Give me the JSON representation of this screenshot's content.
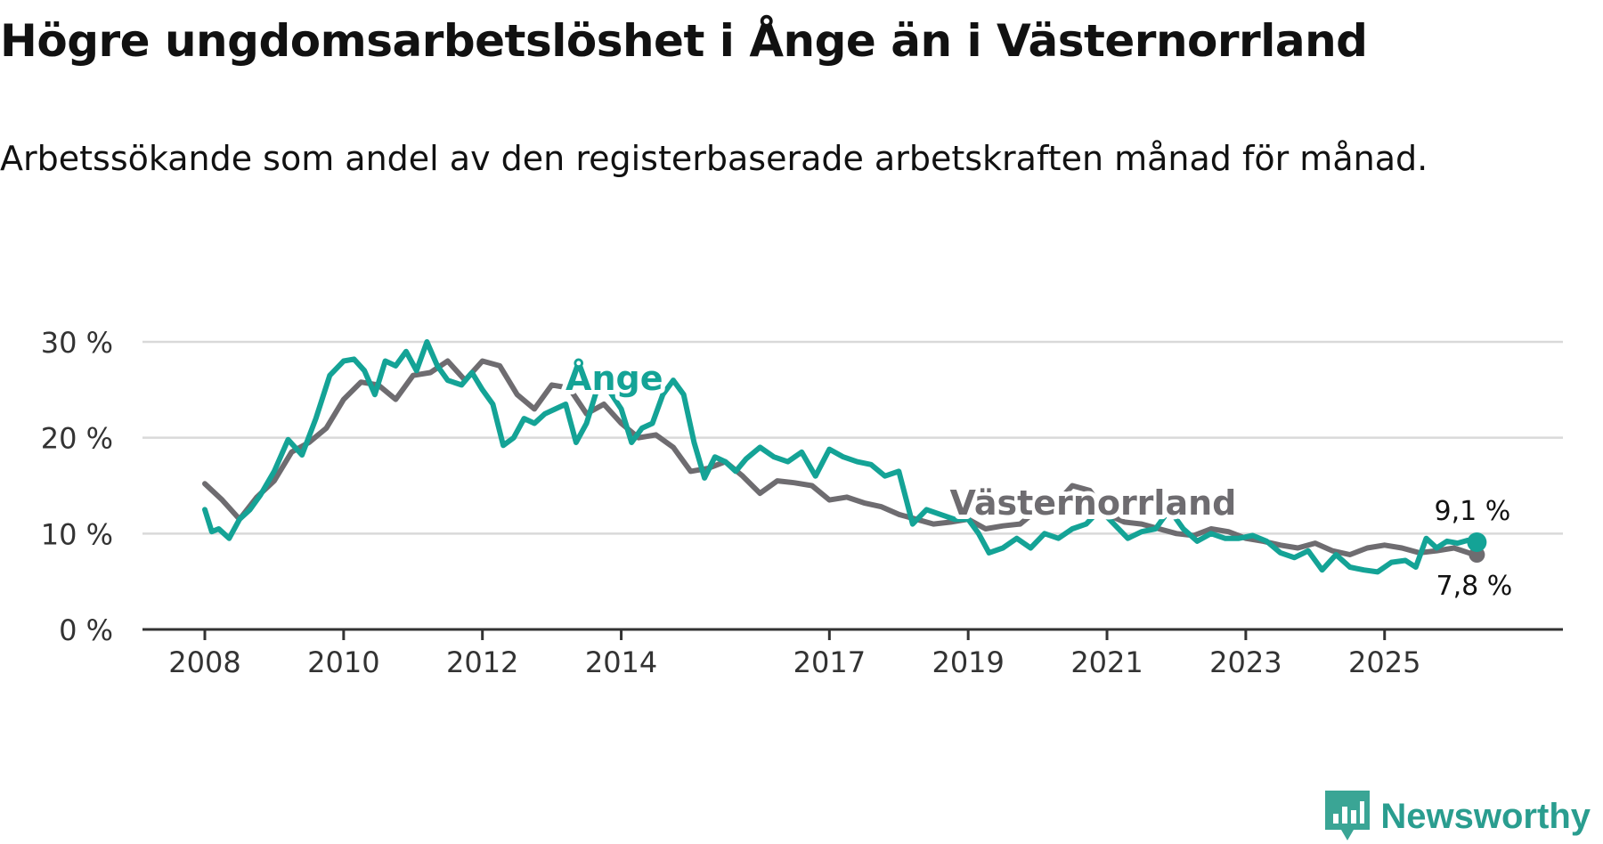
{
  "header": {
    "title": "Högre ungdomsarbetslöshet i Ånge än i Västernorrland",
    "subtitle": "Arbetssökande som andel av den registerbaserade arbetskraften månad för månad."
  },
  "branding": {
    "name": "Newsworthy",
    "icon": "newsworthy-logo-icon",
    "color": "#3aa595"
  },
  "chart_data": {
    "type": "line",
    "title": "Högre ungdomsarbetslöshet i Ånge än i Västernorrland",
    "xlabel": "",
    "ylabel": "",
    "xlim": [
      2008,
      2026.8
    ],
    "ylim": [
      0,
      30
    ],
    "yticks": [
      0,
      10,
      20,
      30
    ],
    "ytick_labels": [
      "0 %",
      "10 %",
      "20 %",
      "30 %"
    ],
    "xticks": [
      2008,
      2010,
      2012,
      2014,
      2017,
      2019,
      2021,
      2023,
      2025
    ],
    "xtick_labels": [
      "2008",
      "2010",
      "2012",
      "2014",
      "2017",
      "2019",
      "2021",
      "2023",
      "2025"
    ],
    "grid": true,
    "series": [
      {
        "name": "Västernorrland",
        "color": "#6e6c70",
        "label": "Västernorrland",
        "end_label": "7,8 %",
        "x": [
          2008.0,
          2008.25,
          2008.5,
          2008.75,
          2009.0,
          2009.25,
          2009.5,
          2009.75,
          2010.0,
          2010.25,
          2010.5,
          2010.75,
          2011.0,
          2011.25,
          2011.5,
          2011.75,
          2012.0,
          2012.25,
          2012.5,
          2012.75,
          2013.0,
          2013.25,
          2013.5,
          2013.75,
          2014.0,
          2014.25,
          2014.5,
          2014.75,
          2015.0,
          2015.25,
          2015.5,
          2015.75,
          2016.0,
          2016.25,
          2016.5,
          2016.75,
          2017.0,
          2017.25,
          2017.5,
          2017.75,
          2018.0,
          2018.25,
          2018.5,
          2018.75,
          2019.0,
          2019.25,
          2019.5,
          2019.75,
          2020.0,
          2020.25,
          2020.5,
          2020.75,
          2021.0,
          2021.25,
          2021.5,
          2021.75,
          2022.0,
          2022.25,
          2022.5,
          2022.75,
          2023.0,
          2023.25,
          2023.5,
          2023.75,
          2024.0,
          2024.25,
          2024.5,
          2024.75,
          2025.0,
          2025.25,
          2025.5,
          2025.75,
          2026.0,
          2026.25,
          2026.33
        ],
        "values": [
          15.2,
          13.5,
          11.5,
          13.8,
          15.5,
          18.5,
          19.5,
          21.0,
          24.0,
          25.8,
          25.5,
          24.0,
          26.5,
          26.8,
          28.0,
          26.0,
          28.0,
          27.5,
          24.5,
          23.0,
          25.5,
          25.2,
          22.5,
          23.5,
          21.5,
          20.0,
          20.3,
          19.0,
          16.5,
          16.8,
          17.5,
          16.0,
          14.2,
          15.5,
          15.3,
          15.0,
          13.5,
          13.8,
          13.2,
          12.8,
          12.0,
          11.5,
          11.0,
          11.2,
          11.5,
          10.5,
          10.8,
          11.0,
          12.5,
          13.0,
          15.0,
          14.5,
          12.0,
          11.2,
          11.0,
          10.5,
          10.0,
          9.8,
          10.5,
          10.2,
          9.5,
          9.2,
          8.8,
          8.5,
          9.0,
          8.2,
          7.8,
          8.5,
          8.8,
          8.5,
          8.0,
          8.2,
          8.5,
          7.9,
          7.8
        ]
      },
      {
        "name": "Ånge",
        "color": "#14a396",
        "label": "Ånge",
        "end_label": "9,1 %",
        "x": [
          2008.0,
          2008.1,
          2008.2,
          2008.35,
          2008.5,
          2008.65,
          2008.8,
          2009.0,
          2009.2,
          2009.4,
          2009.6,
          2009.8,
          2010.0,
          2010.15,
          2010.3,
          2010.45,
          2010.6,
          2010.75,
          2010.9,
          2011.05,
          2011.2,
          2011.35,
          2011.5,
          2011.7,
          2011.85,
          2012.0,
          2012.15,
          2012.3,
          2012.45,
          2012.6,
          2012.75,
          2012.9,
          2013.05,
          2013.2,
          2013.35,
          2013.5,
          2013.65,
          2013.8,
          2014.0,
          2014.15,
          2014.3,
          2014.45,
          2014.6,
          2014.75,
          2014.9,
          2015.05,
          2015.2,
          2015.35,
          2015.5,
          2015.65,
          2015.8,
          2016.0,
          2016.2,
          2016.4,
          2016.6,
          2016.8,
          2017.0,
          2017.2,
          2017.4,
          2017.6,
          2017.8,
          2018.0,
          2018.2,
          2018.4,
          2018.6,
          2018.8,
          2019.0,
          2019.15,
          2019.3,
          2019.5,
          2019.7,
          2019.9,
          2020.1,
          2020.3,
          2020.5,
          2020.7,
          2020.9,
          2021.1,
          2021.3,
          2021.5,
          2021.7,
          2021.9,
          2022.1,
          2022.3,
          2022.5,
          2022.7,
          2022.9,
          2023.1,
          2023.3,
          2023.5,
          2023.7,
          2023.9,
          2024.1,
          2024.3,
          2024.5,
          2024.7,
          2024.9,
          2025.1,
          2025.3,
          2025.45,
          2025.6,
          2025.75,
          2025.9,
          2026.05,
          2026.2,
          2026.33
        ],
        "values": [
          12.5,
          10.2,
          10.5,
          9.5,
          11.5,
          12.5,
          14.0,
          16.5,
          19.8,
          18.2,
          22.0,
          26.5,
          28.0,
          28.2,
          27.0,
          24.5,
          28.0,
          27.5,
          29.0,
          27.0,
          30.0,
          27.5,
          26.0,
          25.5,
          26.8,
          25.0,
          23.5,
          19.2,
          20.0,
          22.0,
          21.5,
          22.5,
          23.0,
          23.5,
          19.5,
          21.5,
          25.0,
          25.2,
          23.0,
          19.5,
          21.0,
          21.5,
          24.5,
          26.0,
          24.5,
          19.5,
          15.8,
          18.0,
          17.5,
          16.5,
          17.8,
          19.0,
          18.0,
          17.5,
          18.5,
          16.0,
          18.8,
          18.0,
          17.5,
          17.2,
          16.0,
          16.5,
          11.0,
          12.5,
          12.0,
          11.5,
          11.5,
          10.0,
          8.0,
          8.5,
          9.5,
          8.5,
          10.0,
          9.5,
          10.5,
          11.0,
          12.5,
          11.0,
          9.5,
          10.2,
          10.5,
          12.5,
          10.5,
          9.2,
          10.0,
          9.5,
          9.5,
          9.8,
          9.2,
          8.0,
          7.5,
          8.2,
          6.2,
          7.8,
          6.5,
          6.2,
          6.0,
          7.0,
          7.2,
          6.5,
          9.5,
          8.5,
          9.2,
          9.0,
          9.3,
          9.1
        ]
      }
    ]
  }
}
